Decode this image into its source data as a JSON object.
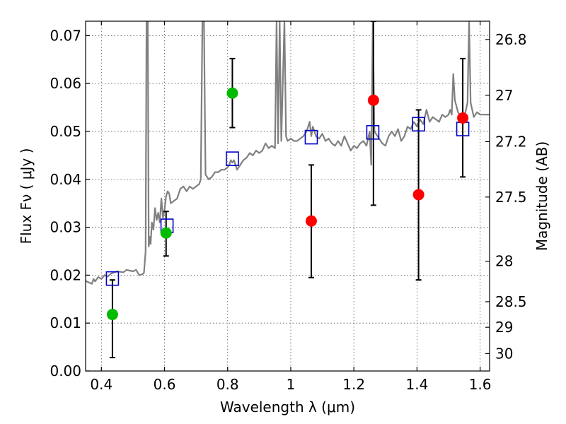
{
  "chart_data": {
    "type": "scatter",
    "title": "",
    "xlabel": "Wavelength  λ (μm)",
    "ylabel": "Flux  Fν  ( μJy )",
    "y2label": "Magnitude (AB)",
    "xlim": [
      0.35,
      1.63
    ],
    "ylim": [
      0.0,
      0.073
    ],
    "grid": true,
    "x_ticks": [
      {
        "value": 0.4,
        "label": "0.4"
      },
      {
        "value": 0.6,
        "label": "0.6"
      },
      {
        "value": 0.8,
        "label": "0.8"
      },
      {
        "value": 1.0,
        "label": "1"
      },
      {
        "value": 1.2,
        "label": "1.2"
      },
      {
        "value": 1.4,
        "label": "1.4"
      },
      {
        "value": 1.6,
        "label": "1.6"
      }
    ],
    "y_ticks": [
      {
        "value": 0.0,
        "label": "0.00"
      },
      {
        "value": 0.01,
        "label": "0.01"
      },
      {
        "value": 0.02,
        "label": "0.02"
      },
      {
        "value": 0.03,
        "label": "0.03"
      },
      {
        "value": 0.04,
        "label": "0.04"
      },
      {
        "value": 0.05,
        "label": "0.05"
      },
      {
        "value": 0.06,
        "label": "0.06"
      },
      {
        "value": 0.07,
        "label": "0.07"
      }
    ],
    "y2_ticks": [
      {
        "mag": 26.8,
        "label": "26.8"
      },
      {
        "mag": 27.0,
        "label": "27"
      },
      {
        "mag": 27.2,
        "label": "27.2"
      },
      {
        "mag": 27.5,
        "label": "27.5"
      },
      {
        "mag": 28.0,
        "label": "28"
      },
      {
        "mag": 28.5,
        "label": "28.5"
      },
      {
        "mag": 29.0,
        "label": "29"
      },
      {
        "mag": 30.0,
        "label": "30"
      }
    ],
    "series": [
      {
        "kind": "line",
        "color": "#808080",
        "points": [
          [
            0.35,
            0.0188
          ],
          [
            0.36,
            0.0185
          ],
          [
            0.37,
            0.0182
          ],
          [
            0.375,
            0.0192
          ],
          [
            0.38,
            0.0187
          ],
          [
            0.39,
            0.0196
          ],
          [
            0.4,
            0.0192
          ],
          [
            0.41,
            0.02
          ],
          [
            0.42,
            0.0197
          ],
          [
            0.43,
            0.0203
          ],
          [
            0.45,
            0.0208
          ],
          [
            0.47,
            0.0206
          ],
          [
            0.48,
            0.0211
          ],
          [
            0.5,
            0.0208
          ],
          [
            0.51,
            0.0211
          ],
          [
            0.52,
            0.02
          ],
          [
            0.53,
            0.0202
          ],
          [
            0.535,
            0.0205
          ],
          [
            0.54,
            0.025
          ],
          [
            0.543,
            0.073
          ],
          [
            0.547,
            0.073
          ],
          [
            0.55,
            0.026
          ],
          [
            0.553,
            0.028
          ],
          [
            0.556,
            0.0265
          ],
          [
            0.56,
            0.031
          ],
          [
            0.565,
            0.0295
          ],
          [
            0.57,
            0.034
          ],
          [
            0.575,
            0.0315
          ],
          [
            0.58,
            0.033
          ],
          [
            0.585,
            0.031
          ],
          [
            0.59,
            0.036
          ],
          [
            0.595,
            0.032
          ],
          [
            0.6,
            0.0335
          ],
          [
            0.605,
            0.0365
          ],
          [
            0.61,
            0.0375
          ],
          [
            0.615,
            0.037
          ],
          [
            0.62,
            0.035
          ],
          [
            0.63,
            0.0355
          ],
          [
            0.64,
            0.036
          ],
          [
            0.65,
            0.038
          ],
          [
            0.66,
            0.0385
          ],
          [
            0.67,
            0.0375
          ],
          [
            0.68,
            0.0385
          ],
          [
            0.69,
            0.038
          ],
          [
            0.7,
            0.0385
          ],
          [
            0.71,
            0.039
          ],
          [
            0.715,
            0.04
          ],
          [
            0.72,
            0.073
          ],
          [
            0.725,
            0.073
          ],
          [
            0.73,
            0.041
          ],
          [
            0.74,
            0.04
          ],
          [
            0.75,
            0.0405
          ],
          [
            0.76,
            0.0415
          ],
          [
            0.77,
            0.0415
          ],
          [
            0.78,
            0.042
          ],
          [
            0.79,
            0.042
          ],
          [
            0.8,
            0.0425
          ],
          [
            0.805,
            0.043
          ],
          [
            0.81,
            0.044
          ],
          [
            0.815,
            0.0435
          ],
          [
            0.82,
            0.044
          ],
          [
            0.83,
            0.042
          ],
          [
            0.84,
            0.043
          ],
          [
            0.85,
            0.044
          ],
          [
            0.86,
            0.0445
          ],
          [
            0.87,
            0.0455
          ],
          [
            0.88,
            0.045
          ],
          [
            0.89,
            0.046
          ],
          [
            0.9,
            0.0455
          ],
          [
            0.91,
            0.046
          ],
          [
            0.92,
            0.0475
          ],
          [
            0.93,
            0.0465
          ],
          [
            0.94,
            0.047
          ],
          [
            0.95,
            0.0465
          ],
          [
            0.955,
            0.073
          ],
          [
            0.96,
            0.0475
          ],
          [
            0.965,
            0.073
          ],
          [
            0.97,
            0.048
          ],
          [
            0.98,
            0.073
          ],
          [
            0.985,
            0.049
          ],
          [
            0.99,
            0.048
          ],
          [
            1.0,
            0.0485
          ],
          [
            1.01,
            0.048
          ],
          [
            1.02,
            0.048
          ],
          [
            1.03,
            0.0485
          ],
          [
            1.04,
            0.049
          ],
          [
            1.05,
            0.05
          ],
          [
            1.06,
            0.052
          ],
          [
            1.065,
            0.049
          ],
          [
            1.07,
            0.051
          ],
          [
            1.08,
            0.049
          ],
          [
            1.09,
            0.0485
          ],
          [
            1.1,
            0.0495
          ],
          [
            1.11,
            0.048
          ],
          [
            1.12,
            0.0485
          ],
          [
            1.13,
            0.0475
          ],
          [
            1.14,
            0.047
          ],
          [
            1.15,
            0.048
          ],
          [
            1.16,
            0.047
          ],
          [
            1.17,
            0.049
          ],
          [
            1.18,
            0.0475
          ],
          [
            1.19,
            0.046
          ],
          [
            1.2,
            0.047
          ],
          [
            1.21,
            0.0465
          ],
          [
            1.22,
            0.0475
          ],
          [
            1.23,
            0.048
          ],
          [
            1.24,
            0.047
          ],
          [
            1.25,
            0.05
          ],
          [
            1.255,
            0.043
          ],
          [
            1.26,
            0.073
          ],
          [
            1.265,
            0.05
          ],
          [
            1.27,
            0.0495
          ],
          [
            1.28,
            0.0485
          ],
          [
            1.29,
            0.0475
          ],
          [
            1.3,
            0.047
          ],
          [
            1.31,
            0.049
          ],
          [
            1.32,
            0.05
          ],
          [
            1.33,
            0.049
          ],
          [
            1.34,
            0.0505
          ],
          [
            1.35,
            0.048
          ],
          [
            1.36,
            0.049
          ],
          [
            1.37,
            0.051
          ],
          [
            1.38,
            0.0505
          ],
          [
            1.39,
            0.052
          ],
          [
            1.4,
            0.051
          ],
          [
            1.41,
            0.0525
          ],
          [
            1.42,
            0.0515
          ],
          [
            1.43,
            0.0545
          ],
          [
            1.44,
            0.052
          ],
          [
            1.45,
            0.053
          ],
          [
            1.46,
            0.0525
          ],
          [
            1.47,
            0.052
          ],
          [
            1.48,
            0.0535
          ],
          [
            1.49,
            0.053
          ],
          [
            1.5,
            0.0535
          ],
          [
            1.505,
            0.0545
          ],
          [
            1.51,
            0.0535
          ],
          [
            1.515,
            0.062
          ],
          [
            1.52,
            0.0565
          ],
          [
            1.53,
            0.054
          ],
          [
            1.54,
            0.053
          ],
          [
            1.55,
            0.053
          ],
          [
            1.56,
            0.056
          ],
          [
            1.565,
            0.073
          ],
          [
            1.57,
            0.056
          ],
          [
            1.58,
            0.053
          ],
          [
            1.59,
            0.054
          ],
          [
            1.6,
            0.0535
          ],
          [
            1.61,
            0.0535
          ],
          [
            1.63,
            0.0535
          ]
        ]
      },
      {
        "kind": "square",
        "color": "#0000cc",
        "points": [
          [
            0.435,
            0.0193
          ],
          [
            0.608,
            0.0303
          ],
          [
            0.815,
            0.0443
          ],
          [
            1.065,
            0.0488
          ],
          [
            1.26,
            0.0498
          ],
          [
            1.405,
            0.0515
          ],
          [
            1.545,
            0.0505
          ]
        ]
      },
      {
        "kind": "dot",
        "color": "#00bb00",
        "points": [
          {
            "x": 0.435,
            "y": 0.0118,
            "lo": 0.0028,
            "hi": 0.019
          },
          {
            "x": 0.605,
            "y": 0.0288,
            "lo": 0.024,
            "hi": 0.0333
          },
          {
            "x": 0.815,
            "y": 0.058,
            "lo": 0.0508,
            "hi": 0.0652
          }
        ]
      },
      {
        "kind": "dot",
        "color": "#ff0000",
        "points": [
          {
            "x": 1.065,
            "y": 0.0313,
            "lo": 0.0195,
            "hi": 0.043
          },
          {
            "x": 1.262,
            "y": 0.0565,
            "lo": 0.0346,
            "hi": 0.073
          },
          {
            "x": 1.405,
            "y": 0.0368,
            "lo": 0.019,
            "hi": 0.0545
          },
          {
            "x": 1.545,
            "y": 0.0528,
            "lo": 0.0405,
            "hi": 0.0652
          }
        ]
      }
    ]
  }
}
